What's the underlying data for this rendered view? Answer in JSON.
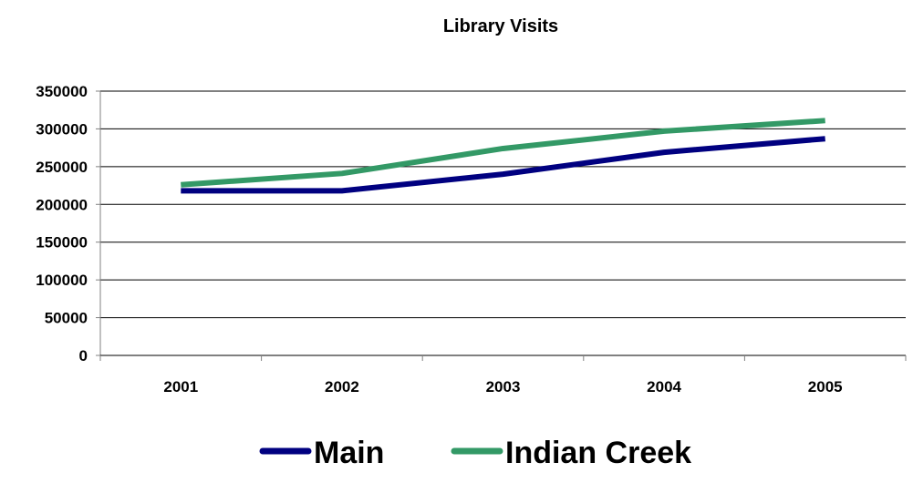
{
  "chart_data": {
    "type": "line",
    "title": "Library Visits",
    "xlabel": "",
    "ylabel": "",
    "categories": [
      "2001",
      "2002",
      "2003",
      "2004",
      "2005"
    ],
    "ylim": [
      0,
      350000
    ],
    "yticks": [
      "0",
      "50000",
      "100000",
      "150000",
      "200000",
      "250000",
      "300000",
      "350000"
    ],
    "grid": true,
    "legend_position": "bottom",
    "series": [
      {
        "name": "Main",
        "color": "#000080",
        "values": [
          218000,
          218000,
          240000,
          269000,
          287000
        ]
      },
      {
        "name": "Indian Creek",
        "color": "#339966",
        "values": [
          226000,
          241000,
          274000,
          297000,
          311000
        ]
      }
    ]
  }
}
